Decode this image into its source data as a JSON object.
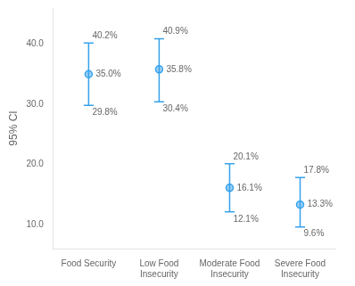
{
  "chart_data": {
    "type": "errorbar",
    "categories": [
      "Food Security",
      "Low Food\nInsecurity",
      "Moderate Food\nInsecurity",
      "Severe Food\nInsecurity"
    ],
    "values": [
      35.0,
      35.8,
      16.1,
      13.3
    ],
    "value_labels": [
      "35.0%",
      "35.8%",
      "16.1%",
      "13.3%"
    ],
    "upper": [
      40.2,
      40.9,
      20.1,
      17.8
    ],
    "upper_labels": [
      "40.2%",
      "40.9%",
      "20.1%",
      "17.8%"
    ],
    "lower": [
      29.8,
      30.4,
      12.1,
      9.6
    ],
    "lower_labels": [
      "29.8%",
      "30.4%",
      "12.1%",
      "9.6%"
    ],
    "y_label": "95% CI",
    "ylim": [
      6,
      46
    ],
    "yticks": [
      {
        "value": 10,
        "label": "10.0"
      },
      {
        "value": 20,
        "label": "20.0"
      },
      {
        "value": 30,
        "label": "30.0"
      },
      {
        "value": 40,
        "label": "40.0"
      }
    ],
    "grid": false,
    "data_labels": true
  }
}
